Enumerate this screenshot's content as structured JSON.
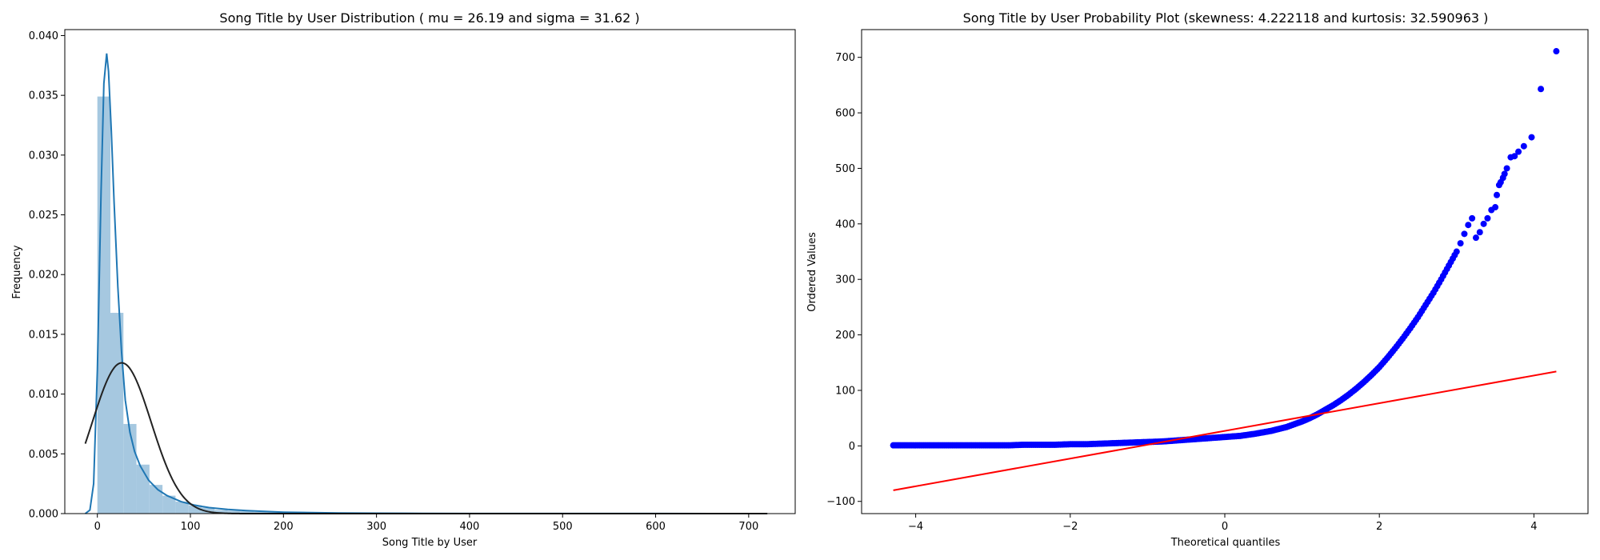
{
  "chart_data": [
    {
      "type": "histogram",
      "title": "Song Title by User Distribution ( mu = 26.19 and sigma = 31.62 )",
      "xlabel": "Song Title by User",
      "ylabel": "Frequency",
      "xlim": [
        -35,
        750
      ],
      "ylim": [
        0,
        0.0405
      ],
      "xticks": [
        0,
        100,
        200,
        300,
        400,
        500,
        600,
        700
      ],
      "yticks": [
        0.0,
        0.005,
        0.01,
        0.015,
        0.02,
        0.025,
        0.03,
        0.035,
        0.04
      ],
      "ytick_labels": [
        "0.000",
        "0.005",
        "0.010",
        "0.015",
        "0.020",
        "0.025",
        "0.030",
        "0.035",
        "0.040"
      ],
      "bar_color": "#a6c8e0",
      "bins": [
        {
          "x0": 0,
          "x1": 14,
          "value": 0.0349
        },
        {
          "x0": 14,
          "x1": 28,
          "value": 0.0168
        },
        {
          "x0": 28,
          "x1": 42,
          "value": 0.0075
        },
        {
          "x0": 42,
          "x1": 56,
          "value": 0.0041
        },
        {
          "x0": 56,
          "x1": 70,
          "value": 0.0024
        },
        {
          "x0": 70,
          "x1": 84,
          "value": 0.0015
        },
        {
          "x0": 84,
          "x1": 98,
          "value": 0.001
        },
        {
          "x0": 98,
          "x1": 112,
          "value": 0.0007
        },
        {
          "x0": 112,
          "x1": 126,
          "value": 0.0005
        },
        {
          "x0": 126,
          "x1": 140,
          "value": 0.0003
        },
        {
          "x0": 140,
          "x1": 154,
          "value": 0.00025
        },
        {
          "x0": 154,
          "x1": 168,
          "value": 0.0002
        },
        {
          "x0": 168,
          "x1": 182,
          "value": 0.00015
        },
        {
          "x0": 182,
          "x1": 196,
          "value": 0.00012
        },
        {
          "x0": 196,
          "x1": 210,
          "value": 0.0001
        },
        {
          "x0": 210,
          "x1": 224,
          "value": 8e-05
        },
        {
          "x0": 224,
          "x1": 238,
          "value": 6e-05
        },
        {
          "x0": 238,
          "x1": 252,
          "value": 5e-05
        },
        {
          "x0": 252,
          "x1": 266,
          "value": 4e-05
        },
        {
          "x0": 266,
          "x1": 280,
          "value": 3e-05
        },
        {
          "x0": 280,
          "x1": 294,
          "value": 2e-05
        }
      ],
      "kde": {
        "color": "#1f77b4",
        "x": [
          -13,
          -8,
          -4,
          0,
          4,
          7,
          10,
          12,
          15,
          18,
          22,
          26,
          30,
          35,
          40,
          46,
          55,
          65,
          75,
          90,
          105,
          120,
          140,
          160,
          180,
          200,
          230,
          260,
          300,
          350,
          400,
          500,
          600,
          720
        ],
        "y": [
          0.0,
          0.0003,
          0.0025,
          0.012,
          0.027,
          0.036,
          0.0385,
          0.037,
          0.032,
          0.026,
          0.019,
          0.0135,
          0.0095,
          0.0068,
          0.0052,
          0.004,
          0.0028,
          0.002,
          0.0015,
          0.001,
          0.0007,
          0.0005,
          0.00035,
          0.00025,
          0.00018,
          0.00012,
          8e-05,
          5e-05,
          3e-05,
          2e-05,
          1e-05,
          1e-05,
          5e-06,
          0.0
        ]
      },
      "normal_fit": {
        "mu": 26.19,
        "sigma": 31.62,
        "color": "#222222",
        "x_range": [
          -13,
          720
        ]
      }
    },
    {
      "type": "scatter",
      "title": "Song Title by User Probability Plot (skewness: 4.222118 and kurtosis: 32.590963 )",
      "xlabel": "Theoretical quantiles",
      "ylabel": "Ordered Values",
      "xlim": [
        -4.7,
        4.7
      ],
      "ylim": [
        -122,
        750
      ],
      "xticks": [
        -4,
        -2,
        0,
        2,
        4
      ],
      "yticks": [
        -100,
        0,
        100,
        200,
        300,
        400,
        500,
        600,
        700
      ],
      "point_color": "#0000ff",
      "fit_line": {
        "color": "#ff0000",
        "x": [
          -4.29,
          4.29
        ],
        "y": [
          -80,
          134
        ]
      },
      "points": {
        "x": [
          -4.29,
          -4.1,
          -3.95,
          -3.8,
          -3.6,
          -3.4,
          -3.2,
          -3.0,
          -2.8,
          -2.6,
          -2.4,
          -2.2,
          -2.0,
          -1.8,
          -1.6,
          -1.4,
          -1.2,
          -1.0,
          -0.8,
          -0.6,
          -0.4,
          -0.2,
          0.0,
          0.2,
          0.4,
          0.6,
          0.8,
          1.0,
          1.1,
          1.2,
          1.3,
          1.4,
          1.5,
          1.6,
          1.7,
          1.8,
          1.9,
          2.0,
          2.1,
          2.2,
          2.3,
          2.4,
          2.5,
          2.6,
          2.7,
          2.8,
          2.9,
          3.0,
          3.05,
          3.1,
          3.15,
          3.2,
          3.25,
          3.3,
          3.35,
          3.4,
          3.45,
          3.5,
          3.52,
          3.55,
          3.57,
          3.6,
          3.62,
          3.65,
          3.7,
          3.75,
          3.8,
          3.87,
          3.97,
          4.09,
          4.29
        ],
        "y": [
          1,
          1,
          1,
          1,
          1,
          1,
          1,
          1,
          1,
          2,
          2,
          2,
          3,
          3,
          4,
          5,
          6,
          7,
          8,
          10,
          12,
          14,
          16,
          18,
          22,
          27,
          34,
          44,
          50,
          57,
          65,
          73,
          82,
          92,
          103,
          115,
          128,
          142,
          158,
          175,
          193,
          212,
          232,
          254,
          276,
          300,
          325,
          350,
          365,
          382,
          398,
          410,
          375,
          385,
          400,
          410,
          425,
          430,
          452,
          470,
          475,
          483,
          490,
          500,
          520,
          522,
          530,
          540,
          556,
          643,
          711
        ]
      }
    }
  ]
}
